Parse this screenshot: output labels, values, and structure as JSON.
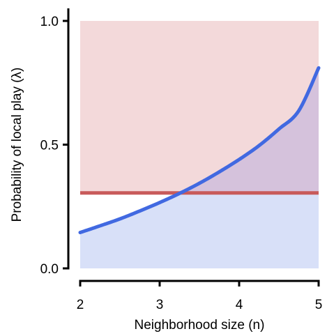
{
  "chart_data": {
    "type": "line",
    "xlabel": "Neighborhood size (n)",
    "ylabel": "Probability of local play (λ)",
    "xlim": [
      2,
      5
    ],
    "ylim": [
      0.0,
      1.0
    ],
    "x_ticks": [
      2,
      3,
      4,
      5
    ],
    "x_tick_labels": [
      "2",
      "3",
      "4",
      "5"
    ],
    "y_ticks": [
      0.0,
      0.5,
      1.0
    ],
    "y_tick_labels": [
      "0.0",
      "0.5",
      "1.0"
    ],
    "grid": false,
    "legend": "none",
    "series": [
      {
        "kind": "curve",
        "color": "#4169E1",
        "x": [
          2.0,
          2.25,
          2.5,
          2.75,
          3.0,
          3.25,
          3.5,
          3.75,
          4.0,
          4.25,
          4.5,
          4.75,
          5.0
        ],
        "y": [
          0.145,
          0.172,
          0.2,
          0.232,
          0.266,
          0.303,
          0.344,
          0.39,
          0.44,
          0.496,
          0.563,
          0.637,
          0.81
        ]
      },
      {
        "kind": "hline",
        "color": "#C85A5A",
        "y": 0.305,
        "x": [
          2.0,
          5.0
        ]
      }
    ],
    "regions": [
      {
        "kind": "above-threshold",
        "color": "#F3D9DA"
      },
      {
        "kind": "below-curve",
        "color": "#D8E0F8"
      },
      {
        "kind": "overlap",
        "color": "#D5C2DC"
      }
    ]
  }
}
